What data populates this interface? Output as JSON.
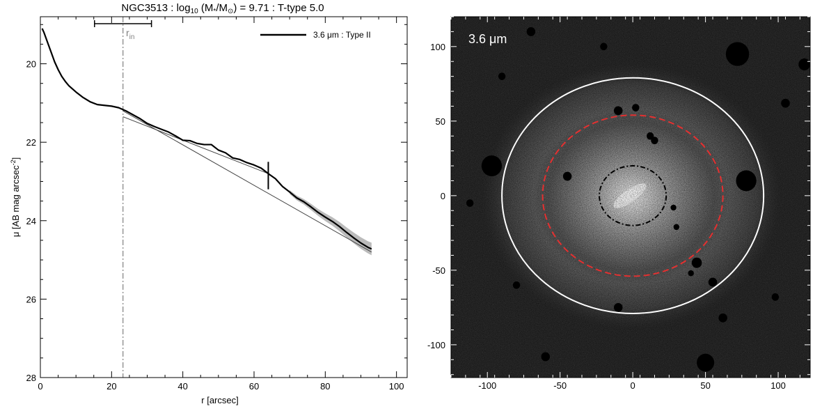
{
  "title_parts": {
    "name": "NGC3513",
    "sep1": " : log",
    "sub10": "10",
    "paren_open": " (M",
    "star": "*",
    "slash": "/M",
    "sun": "⊙",
    "value": ") = 9.71",
    "sep2": " : T-type 5.0"
  },
  "chart_data": [
    {
      "type": "line",
      "xlabel": "r [arcsec]",
      "ylabel_parts": {
        "main": "μ [AB mag arcsec",
        "sup": "-2",
        "close": "]"
      },
      "xlim": [
        0,
        103
      ],
      "ylim": [
        28,
        18.8
      ],
      "y_inverted": true,
      "x_ticks": [
        0,
        20,
        40,
        60,
        80,
        100
      ],
      "y_ticks": [
        20,
        22,
        24,
        26,
        28
      ],
      "grid": false,
      "legend": {
        "position": "top-right",
        "label": "3.6 μm : Type II",
        "color": "#000000"
      },
      "r_in": {
        "x": 23.2,
        "label": "r",
        "label_sub": "in",
        "error_bar": [
          15.2,
          31.2
        ],
        "color": "#808080"
      },
      "break_radius": {
        "x": 64,
        "y_range": [
          22.5,
          23.2
        ]
      },
      "series": [
        {
          "role": "profile",
          "color": "#000000",
          "x": [
            0.5,
            1,
            2,
            3,
            4,
            5,
            6,
            7,
            8,
            9,
            10,
            12,
            14,
            16,
            18,
            20,
            22,
            24,
            26,
            28,
            30,
            32,
            34,
            36,
            38,
            40,
            42,
            44,
            46,
            48,
            50,
            52,
            54,
            56,
            58,
            60,
            62,
            64,
            66,
            68,
            70,
            72,
            74,
            76,
            78,
            80,
            82,
            84,
            86,
            88,
            90,
            92,
            93
          ],
          "y": [
            19.1,
            19.2,
            19.45,
            19.7,
            19.95,
            20.15,
            20.32,
            20.45,
            20.56,
            20.64,
            20.72,
            20.86,
            20.97,
            21.04,
            21.06,
            21.08,
            21.12,
            21.2,
            21.3,
            21.4,
            21.52,
            21.6,
            21.67,
            21.74,
            21.84,
            21.95,
            21.96,
            22.03,
            22.06,
            22.06,
            22.2,
            22.27,
            22.4,
            22.44,
            22.52,
            22.58,
            22.66,
            22.8,
            22.93,
            23.13,
            23.27,
            23.42,
            23.52,
            23.65,
            23.79,
            23.91,
            24.02,
            24.15,
            24.3,
            24.44,
            24.57,
            24.68,
            24.72
          ]
        },
        {
          "role": "inner-fit",
          "color": "#444444",
          "x": [
            23.2,
            64
          ],
          "y": [
            21.35,
            22.8
          ]
        },
        {
          "role": "outer-fit",
          "color": "#444444",
          "x": [
            23.2,
            93
          ],
          "y": [
            21.2,
            24.8
          ]
        }
      ],
      "uncertainty_band": {
        "x": [
          70,
          93
        ],
        "half_width": [
          0.05,
          0.16
        ],
        "color": "#bbbbbb"
      }
    },
    {
      "type": "heatmap",
      "image_label": "3.6 μm",
      "xlim": [
        -125,
        122
      ],
      "ylim": [
        -122,
        120
      ],
      "x_ticks": [
        -100,
        -50,
        0,
        50,
        100
      ],
      "y_ticks": [
        -100,
        -50,
        0,
        50,
        100
      ],
      "ellipses": [
        {
          "name": "outer-ellipse",
          "cx": 0,
          "cy": 0,
          "rx": 90,
          "ry": 79,
          "angle": 0,
          "color": "#ffffff",
          "style": "solid"
        },
        {
          "name": "break-ellipse",
          "cx": 0,
          "cy": 0,
          "rx": 62,
          "ry": 54,
          "angle": 0,
          "color": "#e53030",
          "style": "dashed"
        },
        {
          "name": "inner-ellipse",
          "cx": 0,
          "cy": 0,
          "rx": 23,
          "ry": 20,
          "angle": 0,
          "color": "#000000",
          "style": "dash-dot"
        }
      ],
      "masked_sources": [
        {
          "x": -97,
          "y": 20,
          "r": 7
        },
        {
          "x": 78,
          "y": 10,
          "r": 7
        },
        {
          "x": 72,
          "y": 95,
          "r": 8
        },
        {
          "x": -10,
          "y": 57,
          "r": 3
        },
        {
          "x": 2,
          "y": 59,
          "r": 2.5
        },
        {
          "x": 12,
          "y": 40,
          "r": 2.5
        },
        {
          "x": 15,
          "y": 37,
          "r": 2.5
        },
        {
          "x": -45,
          "y": 13,
          "r": 3
        },
        {
          "x": 28,
          "y": -8,
          "r": 2
        },
        {
          "x": 30,
          "y": -21,
          "r": 2
        },
        {
          "x": 44,
          "y": -45,
          "r": 3.5
        },
        {
          "x": 40,
          "y": -52,
          "r": 2
        },
        {
          "x": -10,
          "y": -75,
          "r": 3
        },
        {
          "x": -80,
          "y": -60,
          "r": 2.5
        },
        {
          "x": 55,
          "y": -58,
          "r": 3
        },
        {
          "x": 62,
          "y": -82,
          "r": 3
        },
        {
          "x": 50,
          "y": -112,
          "r": 6
        },
        {
          "x": -70,
          "y": 110,
          "r": 3
        },
        {
          "x": -90,
          "y": 80,
          "r": 2.5
        },
        {
          "x": 105,
          "y": 62,
          "r": 3
        },
        {
          "x": -60,
          "y": -108,
          "r": 3
        },
        {
          "x": 98,
          "y": -68,
          "r": 2.5
        },
        {
          "x": -112,
          "y": -5,
          "r": 2.5
        },
        {
          "x": -20,
          "y": 100,
          "r": 2.5
        },
        {
          "x": 118,
          "y": 88,
          "r": 4
        }
      ]
    }
  ]
}
